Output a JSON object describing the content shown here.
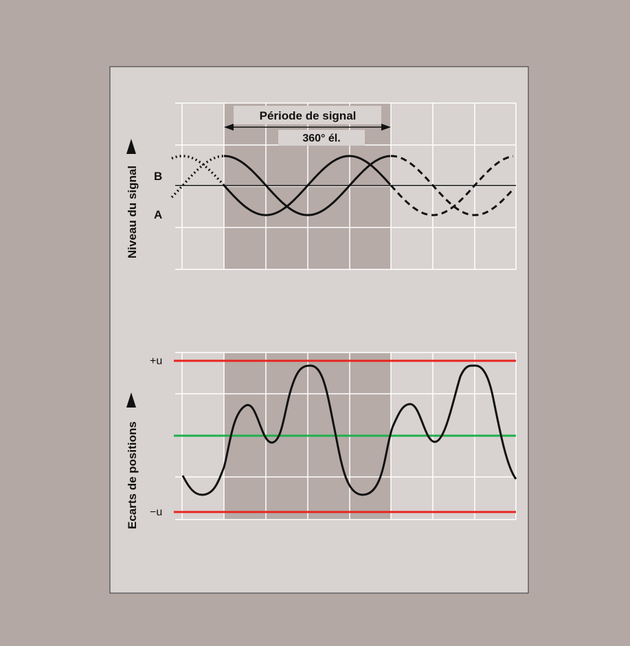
{
  "colors": {
    "background": "#b3a8a4",
    "panel": "#d8d2d0",
    "shaded_period": "#b6aba7",
    "grid_line": "#ffffff",
    "curve": "#111111",
    "limit_line": "#e8241f",
    "zero_line": "#1db04b"
  },
  "top_diagram": {
    "y_axis_label": "Niveau du signal",
    "period_label": "Période de signal",
    "degrees_label": "360° él.",
    "signal_b_label": "B",
    "signal_a_label": "A",
    "signals": [
      {
        "name": "A",
        "style": "solid in one period, dashed after, dotted before"
      },
      {
        "name": "B",
        "style": "solid in one period, dashed after, dotted before"
      }
    ]
  },
  "bottom_diagram": {
    "y_axis_label": "Ecarts de positions",
    "upper_limit_label": "+u",
    "lower_limit_label": "−u"
  },
  "icons": [
    "arrow-up-icon",
    "double-arrow-icon"
  ]
}
